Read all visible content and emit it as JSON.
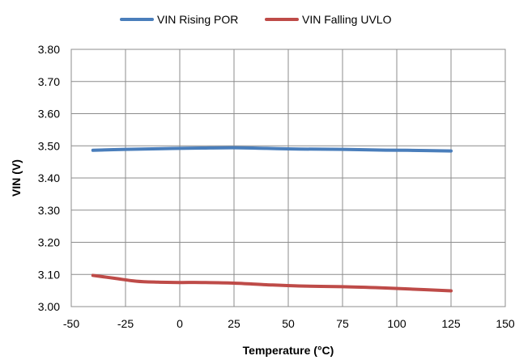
{
  "chart_data": {
    "type": "line",
    "title": "",
    "xlabel": "Temperature (°C)",
    "ylabel": "VIN (V)",
    "xlim": [
      -50,
      150
    ],
    "ylim": [
      3.0,
      3.8
    ],
    "x_ticks": [
      -50,
      -25,
      0,
      25,
      50,
      75,
      100,
      125,
      150
    ],
    "y_ticks": [
      3.0,
      3.1,
      3.2,
      3.3,
      3.4,
      3.5,
      3.6,
      3.7,
      3.8
    ],
    "x_tick_labels": [
      "-50",
      "-25",
      "0",
      "25",
      "50",
      "75",
      "100",
      "125",
      "150"
    ],
    "y_tick_labels": [
      "3.00",
      "3.10",
      "3.20",
      "3.30",
      "3.40",
      "3.50",
      "3.60",
      "3.70",
      "3.80"
    ],
    "grid": true,
    "legend_position": "top",
    "series": [
      {
        "name": "VIN Rising POR",
        "color": "#4a7ebb",
        "x": [
          -40,
          -25,
          -10,
          0,
          10,
          25,
          40,
          55,
          75,
          90,
          105,
          125
        ],
        "y": [
          3.486,
          3.489,
          3.491,
          3.492,
          3.493,
          3.494,
          3.492,
          3.49,
          3.489,
          3.487,
          3.486,
          3.484
        ]
      },
      {
        "name": "VIN Falling UVLO",
        "color": "#be4b48",
        "x": [
          -40,
          -30,
          -20,
          -10,
          0,
          10,
          25,
          40,
          55,
          75,
          90,
          105,
          125
        ],
        "y": [
          3.097,
          3.088,
          3.079,
          3.076,
          3.075,
          3.075,
          3.073,
          3.068,
          3.064,
          3.062,
          3.059,
          3.055,
          3.049
        ]
      }
    ]
  }
}
